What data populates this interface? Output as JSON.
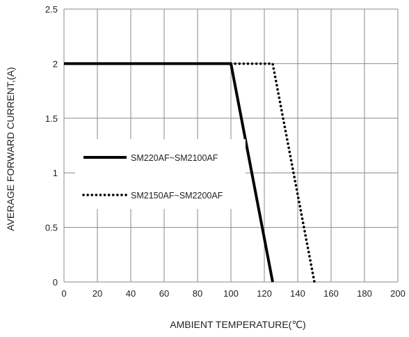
{
  "chart_data": {
    "type": "line",
    "title": "",
    "xlabel": "AMBIENT TEMPERATURE(℃)",
    "ylabel": "AVERAGE FORWARD CURRENT,(A)",
    "xlim": [
      0,
      200
    ],
    "ylim": [
      0,
      2.5
    ],
    "xticks": [
      0,
      20,
      40,
      60,
      80,
      100,
      120,
      140,
      160,
      180,
      200
    ],
    "yticks": [
      0,
      0.5,
      1,
      1.5,
      2,
      2.5
    ],
    "xtick_labels": [
      "0",
      "20",
      "40",
      "60",
      "80",
      "100",
      "120",
      "140",
      "160",
      "180",
      "200"
    ],
    "ytick_labels": [
      "0",
      "0.5",
      "1",
      "1.5",
      "2",
      "2.5"
    ],
    "grid": true,
    "legend_placement": "middle-left",
    "series": [
      {
        "name": "SM220AF~SM2100AF",
        "style": "solid",
        "color": "#000000",
        "x": [
          0,
          100,
          125
        ],
        "y": [
          2,
          2,
          0
        ]
      },
      {
        "name": "SM2150AF~SM2200AF",
        "style": "dotted",
        "color": "#000000",
        "x": [
          100,
          125,
          150
        ],
        "y": [
          2,
          2,
          0
        ]
      }
    ]
  }
}
